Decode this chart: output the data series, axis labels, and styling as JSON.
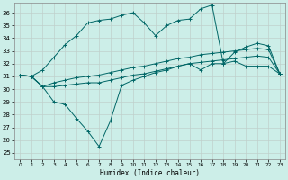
{
  "xlabel": "Humidex (Indice chaleur)",
  "background_color": "#cceee8",
  "grid_color": "#c0d0cc",
  "line_color": "#006666",
  "xlim": [
    -0.5,
    23.5
  ],
  "ylim": [
    24.5,
    36.8
  ],
  "yticks": [
    25,
    26,
    27,
    28,
    29,
    30,
    31,
    32,
    33,
    34,
    35,
    36
  ],
  "xticks": [
    0,
    1,
    2,
    3,
    4,
    5,
    6,
    7,
    8,
    9,
    10,
    11,
    12,
    13,
    14,
    15,
    16,
    17,
    18,
    19,
    20,
    21,
    22,
    23
  ],
  "lines": [
    [
      31.1,
      31.0,
      30.2,
      29.0,
      28.8,
      27.7,
      26.7,
      25.5,
      27.5,
      30.3,
      30.7,
      31.0,
      31.3,
      31.5,
      31.8,
      32.0,
      31.5,
      32.0,
      32.0,
      32.2,
      31.8,
      31.8,
      31.8,
      31.2
    ],
    [
      31.1,
      31.0,
      30.2,
      30.2,
      30.3,
      30.4,
      30.5,
      30.5,
      30.7,
      30.9,
      31.1,
      31.2,
      31.4,
      31.6,
      31.8,
      32.0,
      32.1,
      32.2,
      32.3,
      32.4,
      32.5,
      32.6,
      32.5,
      31.2
    ],
    [
      31.1,
      31.0,
      30.2,
      30.5,
      30.7,
      30.9,
      31.0,
      31.1,
      31.3,
      31.5,
      31.7,
      31.8,
      32.0,
      32.2,
      32.4,
      32.5,
      32.7,
      32.8,
      32.9,
      33.0,
      33.1,
      33.2,
      33.1,
      31.2
    ],
    [
      31.1,
      31.0,
      31.5,
      32.5,
      33.5,
      34.2,
      35.2,
      35.4,
      35.5,
      35.8,
      36.0,
      35.2,
      34.2,
      35.0,
      35.4,
      35.5,
      36.3,
      36.6,
      32.0,
      32.9,
      33.3,
      33.6,
      33.4,
      31.2
    ]
  ]
}
